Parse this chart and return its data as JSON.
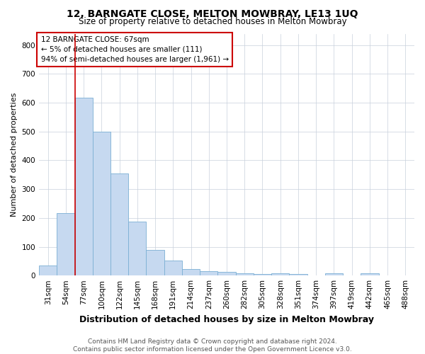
{
  "title": "12, BARNGATE CLOSE, MELTON MOWBRAY, LE13 1UQ",
  "subtitle": "Size of property relative to detached houses in Melton Mowbray",
  "xlabel": "Distribution of detached houses by size in Melton Mowbray",
  "ylabel": "Number of detached properties",
  "categories": [
    "31sqm",
    "54sqm",
    "77sqm",
    "100sqm",
    "122sqm",
    "145sqm",
    "168sqm",
    "191sqm",
    "214sqm",
    "237sqm",
    "260sqm",
    "282sqm",
    "305sqm",
    "328sqm",
    "351sqm",
    "374sqm",
    "397sqm",
    "419sqm",
    "442sqm",
    "465sqm",
    "488sqm"
  ],
  "values": [
    35,
    218,
    618,
    500,
    355,
    188,
    88,
    52,
    22,
    15,
    12,
    8,
    5,
    8,
    5,
    0,
    8,
    0,
    8,
    0,
    0
  ],
  "bar_color": "#c6d9f0",
  "bar_edge_color": "#7bafd4",
  "vline_color": "#cc0000",
  "vline_position": 1.5,
  "annotation_box_text": "12 BARNGATE CLOSE: 67sqm\n← 5% of detached houses are smaller (111)\n94% of semi-detached houses are larger (1,961) →",
  "annotation_box_color": "#ffffff",
  "annotation_box_edge_color": "#cc0000",
  "ylim": [
    0,
    840
  ],
  "yticks": [
    0,
    100,
    200,
    300,
    400,
    500,
    600,
    700,
    800
  ],
  "footer_line1": "Contains HM Land Registry data © Crown copyright and database right 2024.",
  "footer_line2": "Contains public sector information licensed under the Open Government Licence v3.0.",
  "background_color": "#ffffff",
  "grid_color": "#c8d0dc",
  "title_fontsize": 10,
  "subtitle_fontsize": 8.5,
  "xlabel_fontsize": 9,
  "ylabel_fontsize": 8,
  "tick_fontsize": 7.5,
  "annotation_fontsize": 7.5,
  "footer_fontsize": 6.5
}
